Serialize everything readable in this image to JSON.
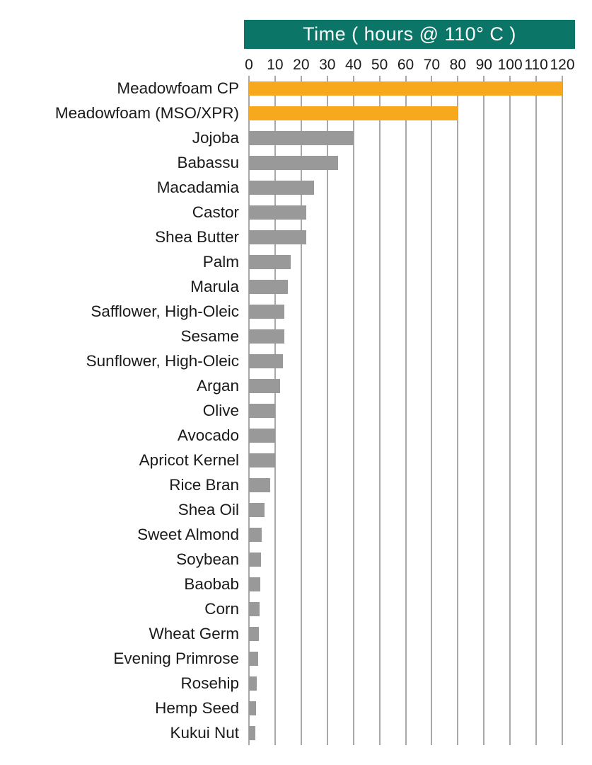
{
  "header": {
    "title": "Time ( hours @ 110° C )"
  },
  "colors": {
    "header_bg": "#0b7668",
    "header_text": "#ffffff",
    "highlight_bar": "#f7a81d",
    "default_bar": "#999999",
    "gridline": "#a8a8a8",
    "label_text": "#1a1a1a"
  },
  "chart_data": {
    "type": "bar",
    "orientation": "horizontal",
    "title": "Time ( hours @ 110° C )",
    "xlabel": "Time (hours @ 110° C)",
    "ylabel": "",
    "xlim": [
      0,
      120
    ],
    "xticks": [
      0,
      10,
      20,
      30,
      40,
      50,
      60,
      70,
      80,
      90,
      100,
      110,
      120
    ],
    "grid": true,
    "legend": false,
    "highlight_indices": [
      0,
      1
    ],
    "categories": [
      "Meadowfoam CP",
      "Meadowfoam (MSO/XPR)",
      "Jojoba",
      "Babassu",
      "Macadamia",
      "Castor",
      "Shea Butter",
      "Palm",
      "Marula",
      "Safflower, High-Oleic",
      "Sesame",
      "Sunflower, High-Oleic",
      "Argan",
      "Olive",
      "Avocado",
      "Apricot Kernel",
      "Rice Bran",
      "Shea Oil",
      "Sweet Almond",
      "Soybean",
      "Baobab",
      "Corn",
      "Wheat Germ",
      "Evening Primrose",
      "Rosehip",
      "Hemp Seed",
      "Kukui Nut"
    ],
    "values": [
      120,
      80,
      40,
      34,
      25,
      22,
      22,
      16,
      15,
      13.5,
      13.5,
      13,
      12,
      10,
      10,
      10,
      8,
      6,
      5,
      4.5,
      4.2,
      4,
      3.8,
      3.5,
      3,
      2.7,
      2.5
    ]
  }
}
